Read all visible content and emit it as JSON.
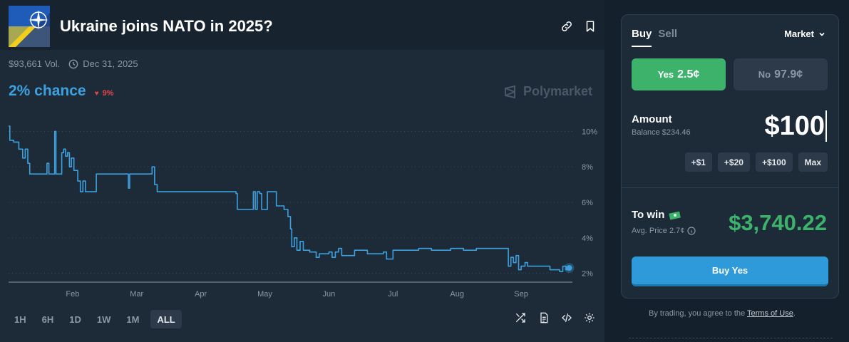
{
  "market": {
    "title": "Ukraine joins NATO in 2025?",
    "volume": "$93,661 Vol.",
    "end_date": "Dec 31, 2025",
    "chance": "2% chance",
    "change": "9%",
    "change_direction": "down",
    "watermark": "Polymarket"
  },
  "header_icons": [
    "link-icon",
    "bookmark-icon"
  ],
  "time_ranges": [
    {
      "label": "1H",
      "active": false
    },
    {
      "label": "6H",
      "active": false
    },
    {
      "label": "1D",
      "active": false
    },
    {
      "label": "1W",
      "active": false
    },
    {
      "label": "1M",
      "active": false
    },
    {
      "label": "ALL",
      "active": true
    }
  ],
  "chart_tools": [
    "shuffle-icon",
    "document-icon",
    "embed-code-icon",
    "settings-gear-icon"
  ],
  "chart_data": {
    "type": "line",
    "title": "",
    "xlabel": "",
    "ylabel": "",
    "x_tick_labels": [
      "Feb",
      "Mar",
      "Apr",
      "May",
      "Jun",
      "Jul",
      "Aug",
      "Sep"
    ],
    "y_tick_labels": [
      "10%",
      "8%",
      "6%",
      "4%",
      "2%"
    ],
    "ylim": [
      1.5,
      10.5
    ],
    "y_unit": "%",
    "x_unit": "months since Jan 1",
    "grid": "horizontal dotted",
    "color": "#3da1e0",
    "series": [
      {
        "name": "",
        "points": [
          [
            0.0,
            10.3
          ],
          [
            0.02,
            9.5
          ],
          [
            0.08,
            9.4
          ],
          [
            0.16,
            9.0
          ],
          [
            0.22,
            8.5
          ],
          [
            0.26,
            9.0
          ],
          [
            0.3,
            8.2
          ],
          [
            0.33,
            7.6
          ],
          [
            0.55,
            7.6
          ],
          [
            0.6,
            8.2
          ],
          [
            0.63,
            7.6
          ],
          [
            0.68,
            7.6
          ],
          [
            0.72,
            10.0
          ],
          [
            0.74,
            7.6
          ],
          [
            0.8,
            7.6
          ],
          [
            0.83,
            8.8
          ],
          [
            0.86,
            9.0
          ],
          [
            0.89,
            8.6
          ],
          [
            0.92,
            8.8
          ],
          [
            0.95,
            8.0
          ],
          [
            0.98,
            8.5
          ],
          [
            1.02,
            7.8
          ],
          [
            1.05,
            7.8
          ],
          [
            1.08,
            7.2
          ],
          [
            1.12,
            6.6
          ],
          [
            1.16,
            7.2
          ],
          [
            1.2,
            6.6
          ],
          [
            1.35,
            6.6
          ],
          [
            1.37,
            7.6
          ],
          [
            1.85,
            7.6
          ],
          [
            1.87,
            6.8
          ],
          [
            1.89,
            7.6
          ],
          [
            2.2,
            7.6
          ],
          [
            2.24,
            8.0
          ],
          [
            2.28,
            7.0
          ],
          [
            2.32,
            6.6
          ],
          [
            3.3,
            6.6
          ],
          [
            3.55,
            6.5
          ],
          [
            3.57,
            5.6
          ],
          [
            3.8,
            5.6
          ],
          [
            3.82,
            6.6
          ],
          [
            3.85,
            5.6
          ],
          [
            3.88,
            6.6
          ],
          [
            3.92,
            6.5
          ],
          [
            3.95,
            5.6
          ],
          [
            4.0,
            5.6
          ],
          [
            4.04,
            6.6
          ],
          [
            4.12,
            6.6
          ],
          [
            4.18,
            5.8
          ],
          [
            4.3,
            5.6
          ],
          [
            4.36,
            5.2
          ],
          [
            4.4,
            4.5
          ],
          [
            4.42,
            3.5
          ],
          [
            4.46,
            4.0
          ],
          [
            4.5,
            3.3
          ],
          [
            4.55,
            3.8
          ],
          [
            4.6,
            3.3
          ],
          [
            4.7,
            3.2
          ],
          [
            4.8,
            2.9
          ],
          [
            4.85,
            3.1
          ],
          [
            5.0,
            3.2
          ],
          [
            5.05,
            2.9
          ],
          [
            5.1,
            3.2
          ],
          [
            5.15,
            3.4
          ],
          [
            5.2,
            3.0
          ],
          [
            5.4,
            3.3
          ],
          [
            5.6,
            3.1
          ],
          [
            5.85,
            3.2
          ],
          [
            5.9,
            2.8
          ],
          [
            6.0,
            3.3
          ],
          [
            6.4,
            3.4
          ],
          [
            6.6,
            3.3
          ],
          [
            6.9,
            3.4
          ],
          [
            7.1,
            3.3
          ],
          [
            7.3,
            3.4
          ],
          [
            7.6,
            3.4
          ],
          [
            7.75,
            3.4
          ],
          [
            7.8,
            2.4
          ],
          [
            7.84,
            2.9
          ],
          [
            7.88,
            2.6
          ],
          [
            7.92,
            3.0
          ],
          [
            7.96,
            2.2
          ],
          [
            8.0,
            2.4
          ],
          [
            8.06,
            2.6
          ],
          [
            8.1,
            2.4
          ],
          [
            8.4,
            2.4
          ],
          [
            8.45,
            2.2
          ],
          [
            8.55,
            2.2
          ],
          [
            8.6,
            2.1
          ],
          [
            8.65,
            2.4
          ],
          [
            8.7,
            2.2
          ],
          [
            8.75,
            2.3
          ]
        ]
      }
    ],
    "last_value": 2.3
  },
  "trade": {
    "tabs": [
      {
        "label": "Buy",
        "active": true
      },
      {
        "label": "Sell",
        "active": false
      }
    ],
    "order_type": "Market",
    "yes_label": "Yes",
    "yes_price": "2.5¢",
    "no_label": "No",
    "no_price": "97.9¢",
    "amount_label": "Amount",
    "balance": "Balance $234.46",
    "amount_value": "$100",
    "quick_amounts": [
      "+$1",
      "+$20",
      "+$100",
      "Max"
    ],
    "to_win_label": "To win",
    "avg_price": "Avg. Price 2.7¢",
    "to_win_value": "$3,740.22",
    "buy_button": "Buy Yes"
  },
  "terms": {
    "prefix": "By trading, you agree to the",
    "link": "Terms of Use",
    "suffix": "."
  },
  "colors": {
    "accent_blue": "#3da1e0",
    "yes_green": "#3db26b",
    "negative_red": "#e0484b",
    "buy_blue": "#2e9ad9",
    "background": "#15202d",
    "panel": "#1d2b39"
  }
}
